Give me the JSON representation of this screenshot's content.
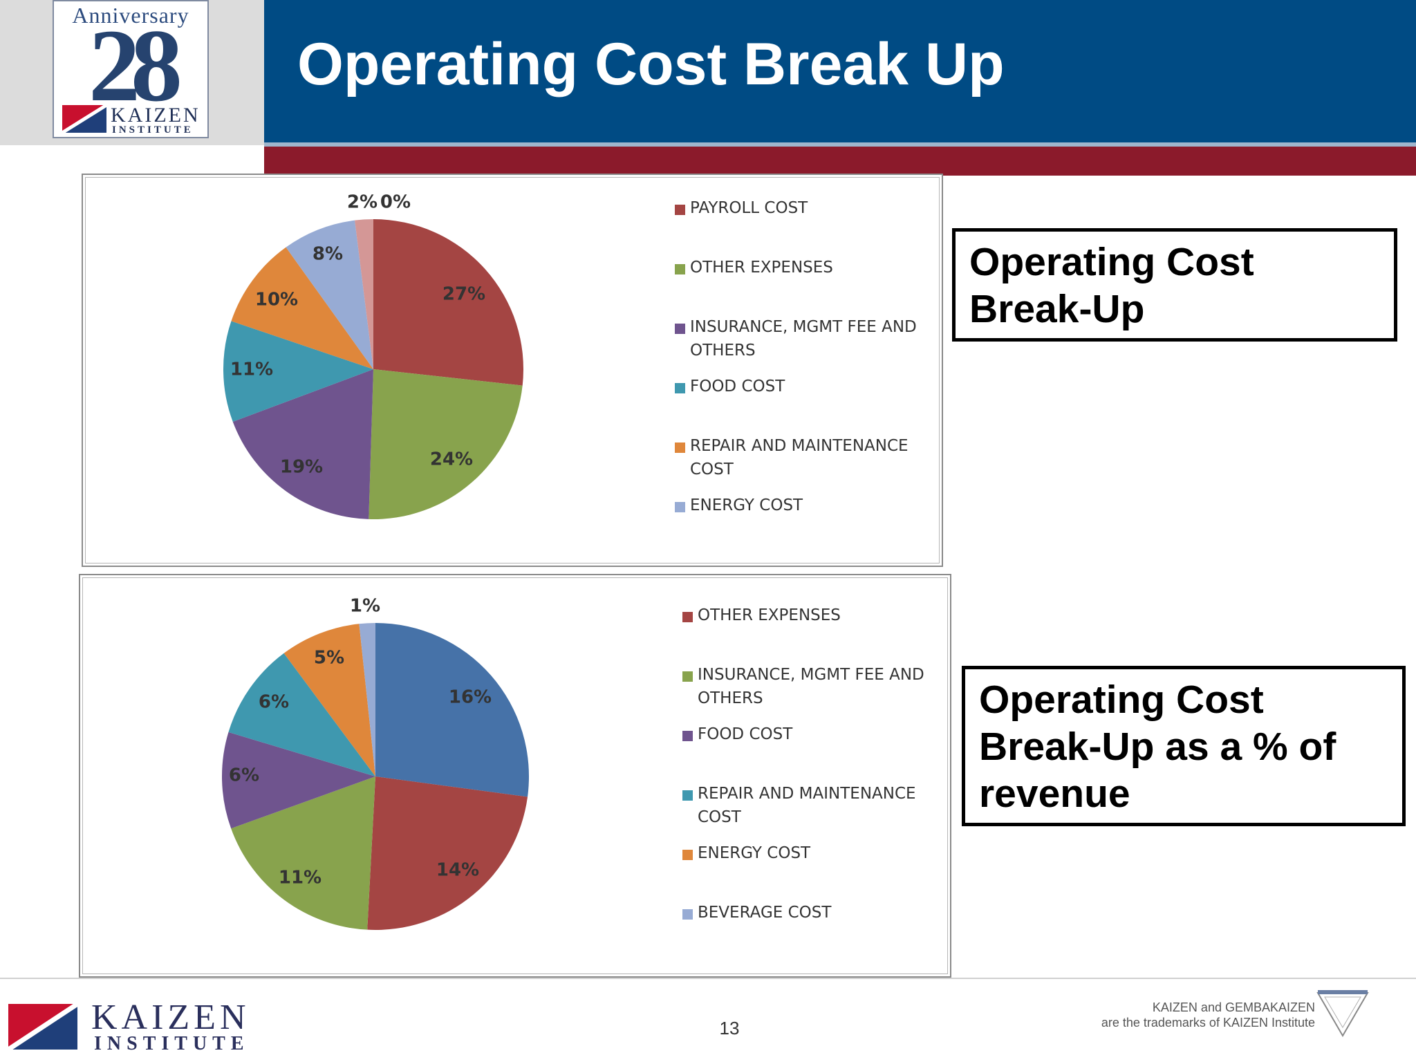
{
  "header": {
    "title": "Operating Cost Break Up",
    "anniversary_label": "Anniversary",
    "anniversary_number": "28",
    "brand": "KAIZEN",
    "brand_sub": "INSTITUTE"
  },
  "callouts": {
    "top": "Operating Cost Break-Up",
    "bottom": "Operating Cost Break-Up as a % of revenue"
  },
  "footer": {
    "brand": "KAIZEN",
    "brand_sub": "INSTITUTE",
    "page_number": "13",
    "trademark_line1": "KAIZEN and GEMBAKAIZEN",
    "trademark_line2": "are the trademarks of KAIZEN Institute"
  },
  "chart_data": [
    {
      "type": "pie",
      "title": "",
      "labels": [
        "PAYROLL COST",
        "OTHER EXPENSES",
        "INSURANCE, MGMT FEE AND OTHERS",
        "FOOD COST",
        "REPAIR AND MAINTENANCE COST",
        "ENERGY COST",
        "",
        ""
      ],
      "values": [
        27,
        24,
        19,
        11,
        10,
        8,
        2,
        0
      ],
      "data_labels": [
        "27%",
        "24%",
        "19%",
        "11%",
        "10%",
        "8%",
        "2%",
        "0%"
      ],
      "colors": [
        "#a44543",
        "#88a34d",
        "#6f548e",
        "#3f98af",
        "#df873b",
        "#97abd4",
        "#d49796",
        "#c0d39c"
      ],
      "legend_position": "right"
    },
    {
      "type": "pie",
      "title": "",
      "labels": [
        "",
        "OTHER EXPENSES",
        "INSURANCE, MGMT FEE AND OTHERS",
        "FOOD COST",
        "REPAIR AND MAINTENANCE COST",
        "ENERGY COST",
        "BEVERAGE COST"
      ],
      "values": [
        16,
        14,
        11,
        6,
        6,
        5,
        1
      ],
      "data_labels": [
        "16%",
        "14%",
        "11%",
        "6%",
        "6%",
        "5%",
        "1%"
      ],
      "colors": [
        "#4672a8",
        "#a44543",
        "#88a34d",
        "#6f548e",
        "#3f98af",
        "#df873b",
        "#97abd4"
      ],
      "legend_position": "right"
    }
  ]
}
